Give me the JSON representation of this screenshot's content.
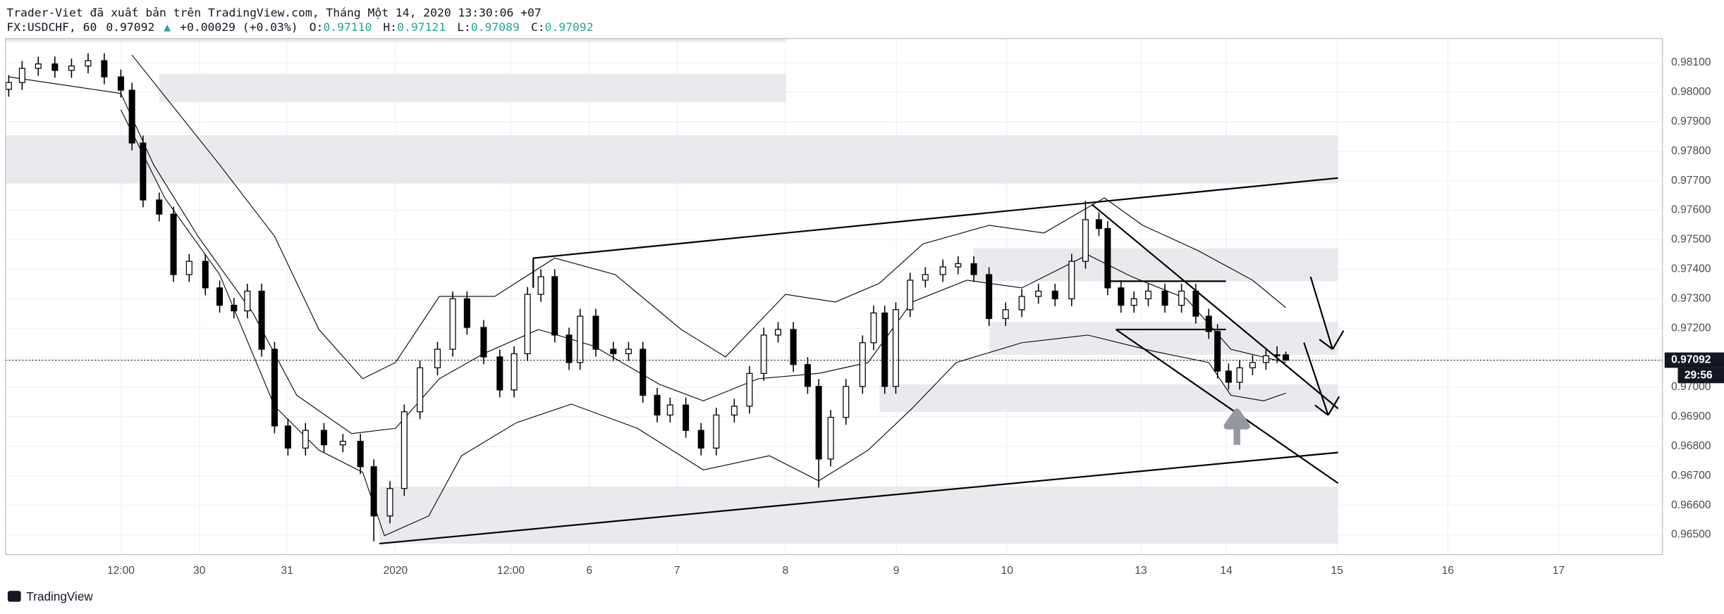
{
  "header": {
    "publisher": "Trader-Viet đã xuất bản trên TradingView.com, Tháng Một 14, 2020 13:30:06 +07",
    "symbol": "FX:USDCHF, 60",
    "last": "0.97092",
    "arrow": "▲",
    "change": "+0.00029 (+0.03%)",
    "o_label": "O:",
    "o": "0.97110",
    "h_label": "H:",
    "h": "0.97121",
    "l_label": "L:",
    "l": "0.97089",
    "c_label": "C:",
    "c": "0.97092"
  },
  "chart_data": {
    "type": "candlestick",
    "x": [
      0.7,
      3.6,
      7.1,
      10.7,
      14.3,
      17.9,
      21.4,
      25,
      27.4,
      29.8,
      33.3,
      36.4,
      39.8,
      43.3,
      46.4,
      49.5,
      52.4,
      55.5,
      58.3,
      61.2,
      65,
      69,
      73.1,
      76.9,
      79.8,
      83.3,
      86.4,
      89.8,
      93.6,
      96.9,
      100,
      103.6,
      107.1,
      110.2,
      113.1,
      116,
      119,
      122.1,
      124.5,
      127.9,
      131.7,
      135,
      138.1,
      141.2,
      144,
      147.4,
      150.7,
      154,
      157.9,
      161.2,
      164.3,
      167.4,
      170.7,
      173.8,
      176.2,
      178.8,
      182.1,
      185.7,
      188.1,
      190.5,
      192.9,
      196,
      199.3,
      203.1,
      206.4,
      209.8,
      213.1,
      216.7,
      220.2,
      223.8,
      227.4,
      231,
      234,
      236.9,
      238.8,
      241.7,
      244.5,
      247.6,
      251.2,
      254.8,
      257.9,
      260.7,
      262.6,
      265,
      267.4,
      270.2,
      273.1,
      275.5,
      277.4
    ],
    "open": [
      0.9801,
      0.98033,
      0.98081,
      0.98096,
      0.98074,
      0.98089,
      0.98107,
      0.98052,
      0.98007,
      0.97828,
      0.97635,
      0.97587,
      0.97382,
      0.97427,
      0.97337,
      0.97278,
      0.97259,
      0.97326,
      0.97129,
      0.96869,
      0.96794,
      0.96854,
      0.96805,
      0.96817,
      0.96731,
      0.96564,
      0.96657,
      0.96917,
      0.97066,
      0.97129,
      0.973,
      0.97203,
      0.97103,
      0.96991,
      0.97114,
      0.97315,
      0.97375,
      0.97177,
      0.97084,
      0.97241,
      0.97129,
      0.97114,
      0.97129,
      0.96973,
      0.96906,
      0.9694,
      0.96854,
      0.96794,
      0.96906,
      0.96936,
      0.97047,
      0.97177,
      0.97196,
      0.97077,
      0.97003,
      0.96757,
      0.96898,
      0.97003,
      0.97151,
      0.97252,
      0.97003,
      0.97263,
      0.97363,
      0.97382,
      0.97408,
      0.97419,
      0.97382,
      0.97233,
      0.97263,
      0.97308,
      0.97326,
      0.973,
      0.97427,
      0.97568,
      0.97538,
      0.97337,
      0.97278,
      0.973,
      0.97326,
      0.97278,
      0.97326,
      0.97241,
      0.97189,
      0.97055,
      0.97017,
      0.97066,
      0.97084,
      0.97107,
      0.9711
    ],
    "high": [
      0.98058,
      0.98106,
      0.98121,
      0.98121,
      0.98114,
      0.98132,
      0.98132,
      0.98077,
      0.98032,
      0.97853,
      0.9766,
      0.97612,
      0.97452,
      0.97452,
      0.97362,
      0.97303,
      0.97351,
      0.97351,
      0.97154,
      0.96894,
      0.96879,
      0.96879,
      0.96842,
      0.96842,
      0.96756,
      0.96682,
      0.96942,
      0.97091,
      0.97154,
      0.97325,
      0.97325,
      0.97228,
      0.97128,
      0.97139,
      0.9734,
      0.974,
      0.974,
      0.97202,
      0.97266,
      0.97266,
      0.97154,
      0.97154,
      0.97154,
      0.96998,
      0.96965,
      0.96965,
      0.96879,
      0.96931,
      0.96961,
      0.97072,
      0.97202,
      0.97221,
      0.97221,
      0.97102,
      0.97028,
      0.96923,
      0.97028,
      0.97176,
      0.97277,
      0.97277,
      0.97288,
      0.97388,
      0.97407,
      0.97433,
      0.97444,
      0.97444,
      0.97407,
      0.97288,
      0.97333,
      0.97351,
      0.97351,
      0.97452,
      0.97632,
      0.97593,
      0.97563,
      0.97362,
      0.97325,
      0.97351,
      0.97351,
      0.97351,
      0.97351,
      0.97266,
      0.97214,
      0.9708,
      0.97091,
      0.97109,
      0.97132,
      0.97139,
      0.97121
    ],
    "low": [
      0.97985,
      0.98008,
      0.98056,
      0.98049,
      0.98049,
      0.98064,
      0.98027,
      0.97982,
      0.97803,
      0.9761,
      0.97562,
      0.97357,
      0.97357,
      0.97312,
      0.97253,
      0.97234,
      0.97234,
      0.97104,
      0.96844,
      0.96769,
      0.96769,
      0.9678,
      0.9678,
      0.96706,
      0.96478,
      0.96539,
      0.96632,
      0.96892,
      0.97041,
      0.97104,
      0.97178,
      0.97078,
      0.96966,
      0.96966,
      0.97089,
      0.9729,
      0.97152,
      0.97059,
      0.97059,
      0.97104,
      0.97089,
      0.97089,
      0.96948,
      0.96881,
      0.96881,
      0.96829,
      0.96769,
      0.96769,
      0.96881,
      0.96911,
      0.97022,
      0.97152,
      0.97052,
      0.96978,
      0.9666,
      0.96732,
      0.96873,
      0.96978,
      0.97126,
      0.96978,
      0.96978,
      0.97238,
      0.97338,
      0.97357,
      0.97383,
      0.97357,
      0.97208,
      0.97208,
      0.97238,
      0.97283,
      0.97275,
      0.97275,
      0.97402,
      0.97513,
      0.97312,
      0.97253,
      0.97253,
      0.97275,
      0.97253,
      0.97253,
      0.97216,
      0.97164,
      0.9703,
      0.96992,
      0.96992,
      0.97041,
      0.97059,
      0.97082,
      0.97089
    ],
    "close": [
      0.98033,
      0.98081,
      0.98096,
      0.98074,
      0.98089,
      0.98107,
      0.98052,
      0.98007,
      0.97828,
      0.97635,
      0.97587,
      0.97382,
      0.97427,
      0.97337,
      0.97278,
      0.97259,
      0.97326,
      0.97129,
      0.96869,
      0.96794,
      0.96854,
      0.96805,
      0.96817,
      0.96731,
      0.96564,
      0.96657,
      0.96917,
      0.97066,
      0.97129,
      0.973,
      0.97203,
      0.97103,
      0.96991,
      0.97114,
      0.97315,
      0.97375,
      0.97177,
      0.97084,
      0.97241,
      0.97129,
      0.97114,
      0.97129,
      0.96973,
      0.96906,
      0.9694,
      0.96854,
      0.96794,
      0.96906,
      0.96936,
      0.97047,
      0.97177,
      0.97196,
      0.97077,
      0.97003,
      0.96757,
      0.96898,
      0.97003,
      0.97151,
      0.97252,
      0.97003,
      0.97263,
      0.97363,
      0.97382,
      0.97408,
      0.97419,
      0.97382,
      0.97233,
      0.97263,
      0.97308,
      0.97326,
      0.973,
      0.97427,
      0.97568,
      0.97538,
      0.97337,
      0.97278,
      0.973,
      0.97326,
      0.97278,
      0.97326,
      0.97241,
      0.97189,
      0.97055,
      0.97017,
      0.97066,
      0.97084,
      0.97107,
      0.9711,
      0.97092
    ],
    "up_color": "#ffffff",
    "down_color": "#000000",
    "wick_color": "#000000",
    "bands": [
      {
        "color": "#000000",
        "x": [
          27.4,
          46.4,
          58.3,
          67.9,
          77.4,
          84.5,
          94,
          106,
          119,
          132.1,
          146.4,
          156,
          169,
          179.8,
          189.3,
          198.8,
          213.1,
          225,
          238.1,
          246.4,
          258.3,
          270.2,
          277.4
        ],
        "values": [
          0.98126,
          0.97754,
          0.97512,
          0.97196,
          0.97029,
          0.97084,
          0.97308,
          0.97308,
          0.97438,
          0.97382,
          0.97196,
          0.97103,
          0.97315,
          0.97289,
          0.97352,
          0.97486,
          0.97549,
          0.97523,
          0.97642,
          0.97549,
          0.97464,
          0.97363,
          0.9727
        ]
      },
      {
        "color": "#000000",
        "x": [
          0.7,
          25,
          32.1,
          41.7,
          53.6,
          63.1,
          75,
          84.5,
          94,
          103.6,
          115.5,
          127.4,
          141.7,
          151.2,
          163.1,
          176.2,
          186.9,
          196.4,
          208.3,
          220.2,
          234.5,
          244,
          255.9,
          265.5,
          277.4
        ],
        "values": [
          0.98052,
          0.97996,
          0.97754,
          0.97512,
          0.97252,
          0.96973,
          0.96843,
          0.96861,
          0.97029,
          0.97114,
          0.97196,
          0.9714,
          0.9701,
          0.96954,
          0.97029,
          0.97047,
          0.97084,
          0.97289,
          0.97363,
          0.97337,
          0.97449,
          0.97375,
          0.973,
          0.97129,
          0.97084
        ]
      },
      {
        "color": "#000000",
        "x": [
          25,
          34.5,
          46.4,
          58.3,
          67.9,
          77.4,
          82.1,
          91.7,
          98.8,
          110.7,
          122.6,
          136.9,
          151.2,
          165.5,
          176.2,
          186.9,
          196.4,
          206,
          220.2,
          234.5,
          248.8,
          260.7,
          265.5,
          272.6,
          277.4
        ],
        "values": [
          0.9794,
          0.97642,
          0.97382,
          0.96936,
          0.96787,
          0.96712,
          0.96497,
          0.96564,
          0.96768,
          0.9688,
          0.96943,
          0.96861,
          0.9672,
          0.96768,
          0.96683,
          0.96787,
          0.96928,
          0.97084,
          0.97151,
          0.97177,
          0.97122,
          0.97084,
          0.96973,
          0.96954,
          0.9698
        ]
      }
    ],
    "xlim": [
      0,
      359
    ],
    "xticks": [
      {
        "value": 25,
        "label": "12:00"
      },
      {
        "value": 42,
        "label": "30"
      },
      {
        "value": 61,
        "label": "31"
      },
      {
        "value": 84.5,
        "label": "2020"
      },
      {
        "value": 109.5,
        "label": "12:00"
      },
      {
        "value": 126.5,
        "label": "6"
      },
      {
        "value": 145.5,
        "label": "7"
      },
      {
        "value": 169,
        "label": "8"
      },
      {
        "value": 193,
        "label": "9"
      },
      {
        "value": 217,
        "label": "10"
      },
      {
        "value": 246,
        "label": "13"
      },
      {
        "value": 264.5,
        "label": "14"
      },
      {
        "value": 288.5,
        "label": "15"
      },
      {
        "value": 312.5,
        "label": "16"
      },
      {
        "value": 336.5,
        "label": "17"
      }
    ],
    "ylim": [
      0.96433,
      0.98182
    ],
    "yticks": [
      {
        "value": 0.965,
        "label": "0.96500"
      },
      {
        "value": 0.966,
        "label": "0.96600"
      },
      {
        "value": 0.967,
        "label": "0.96700"
      },
      {
        "value": 0.968,
        "label": "0.96800"
      },
      {
        "value": 0.969,
        "label": "0.96900"
      },
      {
        "value": 0.97,
        "label": "0.97000"
      },
      {
        "value": 0.971,
        "label": "0.97100"
      },
      {
        "value": 0.972,
        "label": "0.97200"
      },
      {
        "value": 0.973,
        "label": "0.97300"
      },
      {
        "value": 0.974,
        "label": "0.97400"
      },
      {
        "value": 0.975,
        "label": "0.97500"
      },
      {
        "value": 0.976,
        "label": "0.97600"
      },
      {
        "value": 0.977,
        "label": "0.97700"
      },
      {
        "value": 0.978,
        "label": "0.97800"
      },
      {
        "value": 0.979,
        "label": "0.97900"
      },
      {
        "value": 0.98,
        "label": "0.98000"
      },
      {
        "value": 0.981,
        "label": "0.98100"
      }
    ],
    "grid": true,
    "last_price": {
      "value": 0.97092,
      "label": "0.97092"
    },
    "countdown": "29:56"
  },
  "footer": {
    "brand": "TradingView"
  }
}
